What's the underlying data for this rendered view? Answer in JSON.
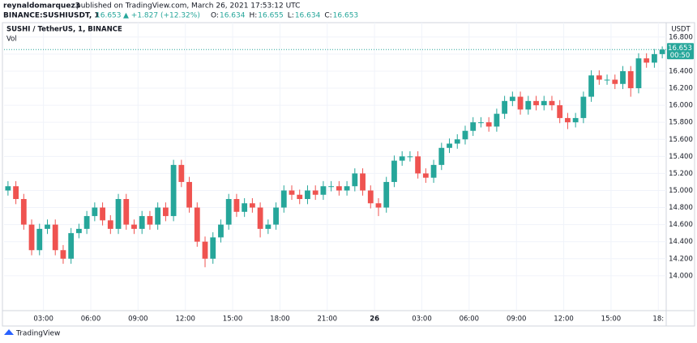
{
  "header": {
    "publisher": "reynaldomarquez3",
    "published": "published on TradingView.com, March 26, 2021 17:53:12 UTC",
    "symbol": "BINANCE:SUSHIUSDT, 1",
    "price": "16.653",
    "change": "▲ +1.827 (+12.32%)",
    "ohlc": [
      {
        "key": "O:",
        "value": "16.634"
      },
      {
        "key": "H:",
        "value": "16.655"
      },
      {
        "key": "L:",
        "value": "16.634"
      },
      {
        "key": "C:",
        "value": "16.653"
      }
    ]
  },
  "footer": {
    "brand": "TradingView"
  },
  "chart_data": {
    "type": "candlestick",
    "title": "SUSHI / TetherUS, 1, BINANCE",
    "volume_label": "Vol",
    "y_axis_label": "USDT",
    "up_color": "#26a69a",
    "down_color": "#ef5350",
    "grid": true,
    "last_price": 16.653,
    "countdown": "00:50",
    "categories": [
      null,
      null,
      null,
      null,
      null,
      "03:00",
      null,
      null,
      null,
      null,
      null,
      "06:00",
      null,
      null,
      null,
      null,
      null,
      "09:00",
      null,
      null,
      null,
      null,
      null,
      "12:00",
      null,
      null,
      null,
      null,
      null,
      "15:00",
      null,
      null,
      null,
      null,
      null,
      "18:00",
      null,
      null,
      null,
      null,
      null,
      "21:00",
      null,
      null,
      null,
      null,
      null,
      "26",
      null,
      null,
      null,
      null,
      null,
      "03:00",
      null,
      null,
      null,
      null,
      null,
      "06:00",
      null,
      null,
      null,
      null,
      null,
      "09:00",
      null,
      null,
      null,
      null,
      null,
      "12:00",
      null,
      null,
      null,
      null,
      null,
      "15:00",
      null,
      null,
      null,
      null,
      null,
      "18:"
    ],
    "open": [
      15.0,
      15.05,
      14.9,
      14.6,
      14.3,
      14.55,
      14.6,
      14.3,
      14.2,
      14.5,
      14.55,
      14.7,
      14.8,
      14.65,
      14.55,
      14.9,
      14.6,
      14.55,
      14.7,
      14.6,
      14.8,
      14.7,
      15.3,
      15.1,
      14.8,
      14.4,
      14.2,
      14.45,
      14.6,
      14.9,
      14.75,
      14.85,
      14.8,
      14.55,
      14.6,
      14.8,
      15.0,
      14.95,
      14.9,
      15.0,
      14.95,
      15.05,
      15.05,
      15.0,
      15.05,
      15.2,
      15.0,
      14.85,
      14.8,
      15.1,
      15.35,
      15.4,
      15.4,
      15.2,
      15.15,
      15.3,
      15.5,
      15.55,
      15.6,
      15.7,
      15.8,
      15.8,
      15.75,
      15.9,
      16.05,
      16.1,
      15.95,
      16.05,
      16.0,
      16.05,
      16.0,
      15.85,
      15.8,
      15.85,
      16.1,
      16.35,
      16.3,
      16.3,
      16.25,
      16.4,
      16.2,
      16.55,
      16.5,
      16.6
    ],
    "high": [
      15.11,
      15.11,
      14.96,
      14.66,
      14.61,
      14.66,
      14.66,
      14.36,
      14.56,
      14.61,
      14.76,
      14.86,
      14.86,
      14.71,
      14.96,
      14.96,
      14.66,
      14.76,
      14.76,
      14.86,
      14.86,
      15.36,
      15.36,
      15.16,
      14.86,
      14.46,
      14.51,
      14.66,
      14.96,
      14.96,
      14.91,
      14.91,
      14.86,
      14.66,
      14.86,
      15.06,
      15.06,
      15.01,
      15.06,
      15.06,
      15.11,
      15.11,
      15.11,
      15.11,
      15.26,
      15.26,
      15.06,
      14.91,
      15.16,
      15.41,
      15.46,
      15.46,
      15.46,
      15.26,
      15.36,
      15.56,
      15.61,
      15.66,
      15.76,
      15.86,
      15.86,
      15.86,
      15.96,
      16.11,
      16.16,
      16.16,
      16.11,
      16.11,
      16.11,
      16.11,
      16.06,
      15.91,
      15.91,
      16.16,
      16.41,
      16.41,
      16.36,
      16.36,
      16.46,
      16.46,
      16.61,
      16.61,
      16.66,
      16.69
    ],
    "low": [
      14.94,
      14.84,
      14.54,
      14.24,
      14.24,
      14.49,
      14.24,
      14.14,
      14.14,
      14.44,
      14.49,
      14.64,
      14.59,
      14.49,
      14.49,
      14.54,
      14.49,
      14.49,
      14.54,
      14.54,
      14.64,
      14.64,
      15.04,
      14.74,
      14.34,
      14.1,
      14.14,
      14.39,
      14.54,
      14.69,
      14.69,
      14.74,
      14.45,
      14.49,
      14.54,
      14.74,
      14.89,
      14.84,
      14.84,
      14.89,
      14.89,
      14.99,
      14.94,
      14.94,
      14.99,
      14.94,
      14.79,
      14.7,
      14.74,
      15.04,
      15.29,
      15.34,
      15.14,
      15.09,
      15.09,
      15.24,
      15.44,
      15.49,
      15.54,
      15.64,
      15.74,
      15.69,
      15.69,
      15.84,
      15.99,
      15.89,
      15.89,
      15.94,
      15.94,
      15.94,
      15.79,
      15.72,
      15.74,
      15.79,
      16.04,
      16.24,
      16.24,
      16.19,
      16.19,
      16.1,
      16.14,
      16.44,
      16.44,
      16.55
    ],
    "close": [
      15.05,
      14.9,
      14.6,
      14.3,
      14.55,
      14.6,
      14.3,
      14.2,
      14.5,
      14.55,
      14.7,
      14.8,
      14.65,
      14.55,
      14.9,
      14.6,
      14.55,
      14.7,
      14.6,
      14.8,
      14.7,
      15.3,
      15.1,
      14.8,
      14.4,
      14.2,
      14.45,
      14.6,
      14.9,
      14.75,
      14.85,
      14.8,
      14.55,
      14.6,
      14.8,
      15.0,
      14.95,
      14.9,
      15.0,
      14.95,
      15.05,
      15.05,
      15.0,
      15.05,
      15.2,
      15.0,
      14.85,
      14.8,
      15.1,
      15.35,
      15.4,
      15.4,
      15.2,
      15.15,
      15.3,
      15.5,
      15.55,
      15.6,
      15.7,
      15.8,
      15.8,
      15.75,
      15.9,
      16.05,
      16.1,
      15.95,
      16.05,
      16.0,
      16.05,
      16.0,
      15.85,
      15.8,
      15.85,
      16.1,
      16.35,
      16.3,
      16.3,
      16.25,
      16.4,
      16.2,
      16.55,
      16.5,
      16.6,
      16.653
    ],
    "ylim": [
      13.6,
      16.95
    ],
    "yticks": [
      {
        "value": 14.0,
        "label": "14.000"
      },
      {
        "value": 14.2,
        "label": "14.200"
      },
      {
        "value": 14.4,
        "label": "14.400"
      },
      {
        "value": 14.6,
        "label": "14.600"
      },
      {
        "value": 14.8,
        "label": "14.800"
      },
      {
        "value": 15.0,
        "label": "15.000"
      },
      {
        "value": 15.2,
        "label": "15.200"
      },
      {
        "value": 15.4,
        "label": "15.400"
      },
      {
        "value": 15.6,
        "label": "15.600"
      },
      {
        "value": 15.8,
        "label": "15.800"
      },
      {
        "value": 16.0,
        "label": "16.000"
      },
      {
        "value": 16.2,
        "label": "16.200"
      },
      {
        "value": 16.4,
        "label": "16.400"
      },
      {
        "value": 16.6,
        "label": "16.600"
      },
      {
        "value": 16.8,
        "label": "16.800"
      }
    ]
  }
}
